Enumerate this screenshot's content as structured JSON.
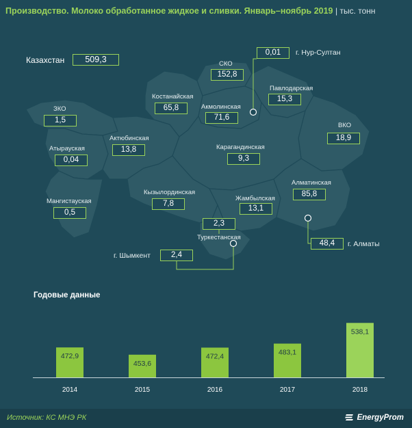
{
  "header": {
    "title": "Производство. Молоко обработанное жидкое и сливки. Январь–ноябрь 2019",
    "unit": "| тыс. тонн"
  },
  "kazakhstan": {
    "label": "Казахстан",
    "value": "509,3"
  },
  "regions": [
    {
      "name": "ЗКО",
      "value": "1,5"
    },
    {
      "name": "Атырауская",
      "value": "0,04"
    },
    {
      "name": "Мангистауская",
      "value": "0,5"
    },
    {
      "name": "Актюбинская",
      "value": "13,8"
    },
    {
      "name": "Костанайская",
      "value": "65,8"
    },
    {
      "name": "СКО",
      "value": "152,8"
    },
    {
      "name": "Акмолинская",
      "value": "71,6"
    },
    {
      "name": "Павлодарская",
      "value": "15,3"
    },
    {
      "name": "ВКО",
      "value": "18,9"
    },
    {
      "name": "Карагандинская",
      "value": "9,3"
    },
    {
      "name": "Кызылординская",
      "value": "7,8"
    },
    {
      "name": "Жамбылская",
      "value": "13,1"
    },
    {
      "name": "Алматинская",
      "value": "85,8"
    },
    {
      "name": "Туркестанская",
      "value": "2,3"
    }
  ],
  "cities": [
    {
      "name": "г. Нур-Султан",
      "value": "0,01"
    },
    {
      "name": "г. Алматы",
      "value": "48,4"
    },
    {
      "name": "г. Шымкент",
      "value": "2,4"
    }
  ],
  "annual": {
    "title": "Годовые данные"
  },
  "chart_data": {
    "type": "bar",
    "title": "Годовые данные",
    "categories": [
      "2014",
      "2015",
      "2016",
      "2017",
      "2018"
    ],
    "values": [
      472.9,
      453.6,
      472.4,
      483.1,
      538.1
    ],
    "value_labels": [
      "472,9",
      "453,6",
      "472,4",
      "483,1",
      "538,1"
    ],
    "colors": {
      "bar": "#8cc63f",
      "bar_last": "#9bd35a"
    },
    "grid": false
  },
  "footer": {
    "source": "Источник: КС МНЭ РК",
    "brand": "EnergyProm"
  },
  "colors": {
    "background": "#1f4a58",
    "map": "#2f5a66",
    "accent": "#9bd35a"
  }
}
